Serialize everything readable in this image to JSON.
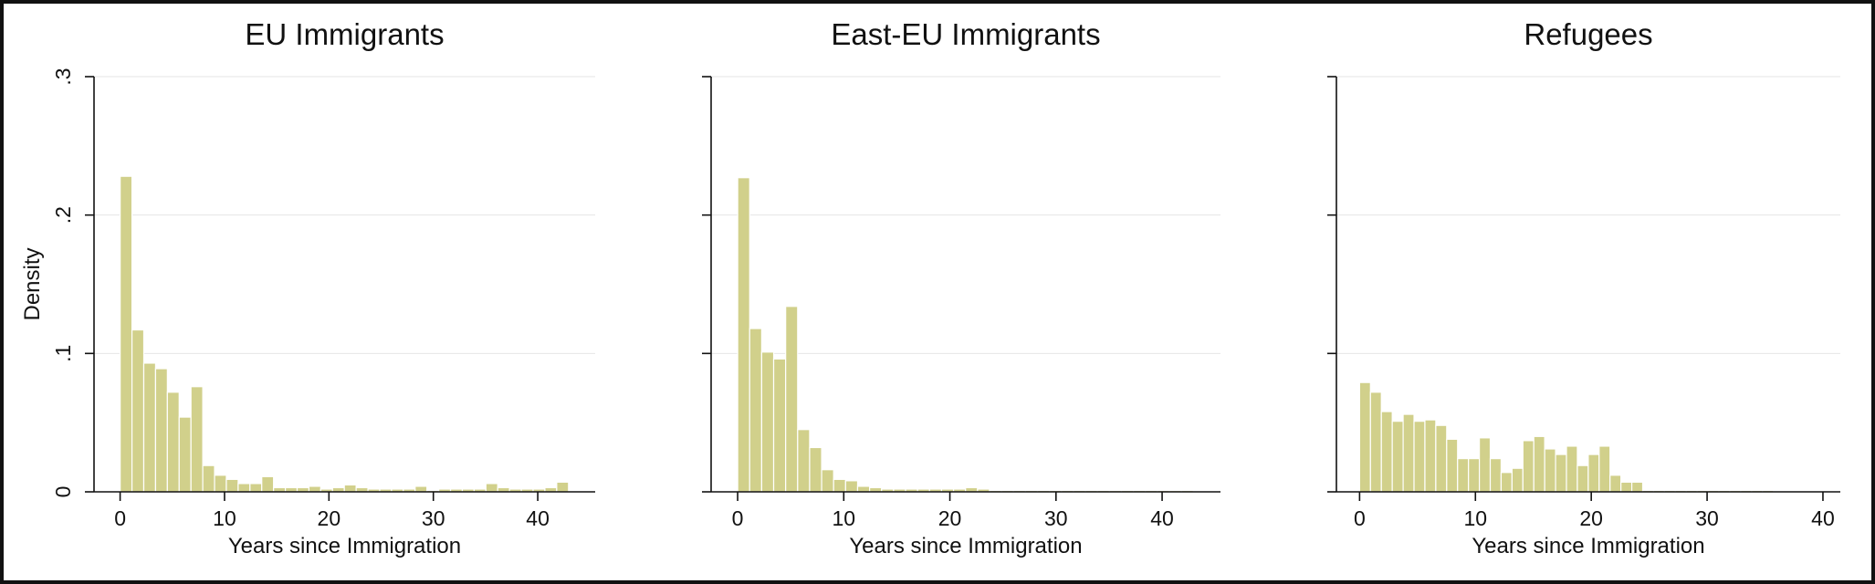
{
  "chart_data": [
    {
      "type": "bar",
      "title": "EU Immigrants",
      "xlabel": "Years since Immigration",
      "ylabel": "Density",
      "xlim": [
        -2.5,
        45.5
      ],
      "ylim": [
        0,
        0.3
      ],
      "xticks": [
        0,
        10,
        20,
        30,
        40
      ],
      "yticks": [
        0,
        0.1,
        0.2,
        0.3
      ],
      "xtick_labels": [
        "0",
        "10",
        "20",
        "30",
        "40"
      ],
      "ytick_labels": [
        "0",
        ".1",
        ".2",
        ".3"
      ],
      "grid": true,
      "bin_width": 1.13,
      "x": [
        0.57,
        1.7,
        2.83,
        3.96,
        5.09,
        6.22,
        7.35,
        8.48,
        9.61,
        10.74,
        11.87,
        13.0,
        14.13,
        15.26,
        16.39,
        17.52,
        18.65,
        19.78,
        20.91,
        22.04,
        23.17,
        24.3,
        25.43,
        26.56,
        27.69,
        28.82,
        29.95,
        31.08,
        32.21,
        33.34,
        34.47,
        35.6,
        36.73,
        37.86,
        38.99,
        40.12,
        41.25,
        42.38,
        43.51
      ],
      "values": [
        0.228,
        0.117,
        0.093,
        0.089,
        0.072,
        0.054,
        0.076,
        0.019,
        0.012,
        0.009,
        0.006,
        0.006,
        0.011,
        0.003,
        0.003,
        0.003,
        0.004,
        0.002,
        0.003,
        0.005,
        0.003,
        0.002,
        0.002,
        0.002,
        0.002,
        0.004,
        0.001,
        0.002,
        0.002,
        0.002,
        0.002,
        0.006,
        0.003,
        0.002,
        0.002,
        0.002,
        0.003,
        0.007,
        0.0
      ]
    },
    {
      "type": "bar",
      "title": "East-EU Immigrants",
      "xlabel": "Years since Immigration",
      "ylabel": "",
      "xlim": [
        -2.5,
        45.5
      ],
      "ylim": [
        0,
        0.3
      ],
      "xticks": [
        0,
        10,
        20,
        30,
        40
      ],
      "yticks": [
        0,
        0.1,
        0.2,
        0.3
      ],
      "xtick_labels": [
        "0",
        "10",
        "20",
        "30",
        "40"
      ],
      "ytick_labels": [],
      "grid": true,
      "bin_width": 1.13,
      "x": [
        0.57,
        1.7,
        2.83,
        3.96,
        5.09,
        6.22,
        7.35,
        8.48,
        9.61,
        10.74,
        11.87,
        13.0,
        14.13,
        15.26,
        16.39,
        17.52,
        18.65,
        19.78,
        20.91,
        22.04,
        23.17,
        24.3,
        25.43,
        26.56,
        27.69,
        28.82,
        29.95,
        31.08,
        32.21,
        33.34,
        34.47,
        35.6,
        36.73,
        37.86,
        38.99,
        40.12,
        41.25,
        42.38
      ],
      "values": [
        0.227,
        0.118,
        0.101,
        0.096,
        0.134,
        0.045,
        0.032,
        0.016,
        0.009,
        0.008,
        0.004,
        0.003,
        0.002,
        0.002,
        0.002,
        0.002,
        0.002,
        0.002,
        0.002,
        0.003,
        0.002,
        0.001,
        0.001,
        0.001,
        0.001,
        0.001,
        0.001,
        0.001,
        0.001,
        0.001,
        0.001,
        0.001,
        0.001,
        0.001,
        0.001,
        0.001,
        0.001,
        0.001
      ]
    },
    {
      "type": "bar",
      "title": "Refugees",
      "xlabel": "Years since Immigration",
      "ylabel": "",
      "xlim": [
        -2.0,
        41.5
      ],
      "ylim": [
        0,
        0.3
      ],
      "xticks": [
        0,
        10,
        20,
        30,
        40
      ],
      "yticks": [
        0,
        0.1,
        0.2,
        0.3
      ],
      "xtick_labels": [
        "0",
        "10",
        "20",
        "30",
        "40"
      ],
      "ytick_labels": [],
      "grid": true,
      "bin_width": 0.94,
      "x": [
        0.47,
        1.41,
        2.35,
        3.29,
        4.23,
        5.17,
        6.11,
        7.05,
        7.99,
        8.93,
        9.87,
        10.81,
        11.75,
        12.69,
        13.63,
        14.57,
        15.51,
        16.45,
        17.39,
        18.33,
        19.27,
        20.21,
        21.15,
        22.09,
        23.03,
        23.97,
        24.91,
        25.85,
        26.79,
        27.73,
        28.67,
        29.61,
        30.55,
        31.49,
        32.43,
        33.37,
        34.31,
        35.25
      ],
      "values": [
        0.079,
        0.072,
        0.058,
        0.051,
        0.056,
        0.051,
        0.052,
        0.048,
        0.038,
        0.024,
        0.024,
        0.039,
        0.024,
        0.014,
        0.017,
        0.037,
        0.04,
        0.031,
        0.027,
        0.033,
        0.019,
        0.027,
        0.033,
        0.012,
        0.007,
        0.007,
        0.001,
        0.001,
        0.001,
        0.001,
        0.001,
        0.001,
        0.001,
        0.001,
        0.001,
        0.001,
        0.001,
        0.001
      ]
    }
  ],
  "colors": {
    "bar_fill": "#d1d08b",
    "bar_edge": "#ffffff",
    "grid": "#e6e6e6",
    "axis": "#111111",
    "frame": "#111111"
  }
}
